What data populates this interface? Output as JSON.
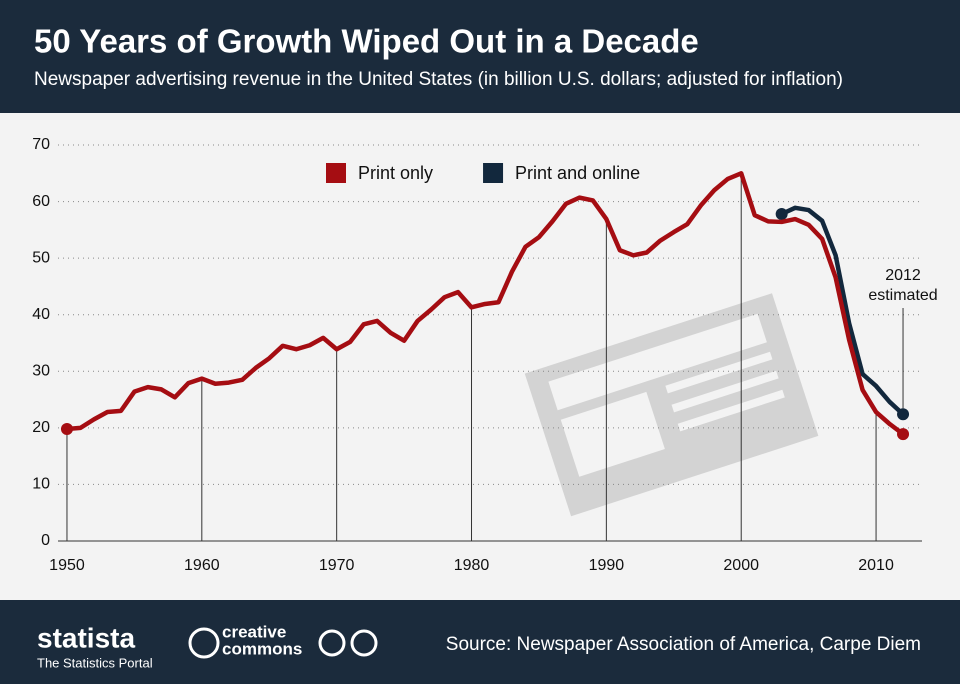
{
  "chart_data": {
    "type": "line",
    "title": "50 Years of Growth Wiped Out in a Decade",
    "subtitle": "Newspaper advertising revenue in the United States (in billion U.S. dollars; adjusted for inflation)",
    "x": [
      1950,
      1951,
      1952,
      1953,
      1954,
      1955,
      1956,
      1957,
      1958,
      1959,
      1960,
      1961,
      1962,
      1963,
      1964,
      1965,
      1966,
      1967,
      1968,
      1969,
      1970,
      1971,
      1972,
      1973,
      1974,
      1975,
      1976,
      1977,
      1978,
      1979,
      1980,
      1981,
      1982,
      1983,
      1984,
      1985,
      1986,
      1987,
      1988,
      1989,
      1990,
      1991,
      1992,
      1993,
      1994,
      1995,
      1996,
      1997,
      1998,
      1999,
      2000,
      2001,
      2002,
      2003,
      2004,
      2005,
      2006,
      2007,
      2008,
      2009,
      2010,
      2011,
      2012
    ],
    "series": [
      {
        "name": "Print only",
        "color": "#a50d12",
        "values": [
          19.8,
          20.0,
          21.5,
          22.8,
          23.0,
          26.4,
          27.2,
          26.8,
          25.4,
          27.9,
          28.7,
          27.8,
          28.0,
          28.5,
          30.6,
          32.3,
          34.5,
          33.9,
          34.6,
          35.9,
          33.9,
          35.2,
          38.3,
          38.9,
          36.8,
          35.4,
          38.9,
          40.9,
          43.1,
          44.0,
          41.3,
          41.9,
          42.2,
          47.6,
          52.0,
          53.7,
          56.5,
          59.6,
          60.7,
          60.2,
          56.9,
          51.4,
          50.5,
          51.0,
          53.1,
          54.6,
          56.0,
          59.3,
          62.0,
          64.0,
          65.0,
          57.6,
          56.5,
          56.4,
          56.9,
          55.9,
          53.4,
          46.6,
          35.6,
          26.7,
          22.8,
          20.7,
          18.9
        ]
      },
      {
        "name": "Print and online",
        "color": "#12283d",
        "values": [
          null,
          null,
          null,
          null,
          null,
          null,
          null,
          null,
          null,
          null,
          null,
          null,
          null,
          null,
          null,
          null,
          null,
          null,
          null,
          null,
          null,
          null,
          null,
          null,
          null,
          null,
          null,
          null,
          null,
          null,
          null,
          null,
          null,
          null,
          null,
          null,
          null,
          null,
          null,
          null,
          null,
          null,
          null,
          null,
          null,
          null,
          null,
          null,
          null,
          null,
          null,
          null,
          null,
          57.8,
          58.9,
          58.5,
          56.6,
          50.5,
          38.5,
          29.5,
          27.4,
          24.6,
          22.4
        ]
      }
    ],
    "annotation": [
      "2012",
      "estimated"
    ],
    "xlim": [
      1948,
      2014
    ],
    "xticks": [
      1950,
      1960,
      1970,
      1980,
      1990,
      2000,
      2010
    ],
    "ylim": [
      0,
      70
    ],
    "yticks": [
      0,
      10,
      20,
      30,
      40,
      50,
      60,
      70
    ],
    "grid": true
  },
  "footer": {
    "brand": "statista",
    "tagline": "The Statistics Portal",
    "license_top": "creative",
    "license_bottom": "commons",
    "source": "Source: Newspaper Association of America, Carpe Diem"
  }
}
